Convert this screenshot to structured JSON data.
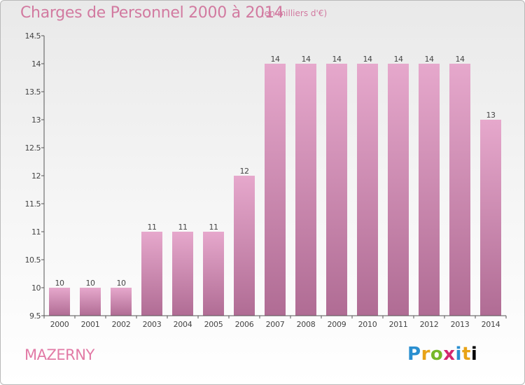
{
  "header": {
    "title": "Charges de Personnel 2000 à 2014",
    "subtitle": "(en milliers d'€)"
  },
  "footer": {
    "commune": "MAZERNY",
    "brand_letters": [
      "P",
      "r",
      "o",
      "x",
      "i",
      "t",
      "i"
    ]
  },
  "colors": {
    "bar_top": "#e6a8cc",
    "bar_bottom": "#b06c94",
    "accent": "#d27aa0"
  },
  "chart_data": {
    "type": "bar",
    "categories": [
      "2000",
      "2001",
      "2002",
      "2003",
      "2004",
      "2005",
      "2006",
      "2007",
      "2008",
      "2009",
      "2010",
      "2011",
      "2012",
      "2013",
      "2014"
    ],
    "values": [
      10,
      10,
      10,
      11,
      11,
      11,
      12,
      14,
      14,
      14,
      14,
      14,
      14,
      14,
      13
    ],
    "data_labels": [
      "10",
      "10",
      "10",
      "11",
      "11",
      "11",
      "12",
      "14",
      "14",
      "14",
      "14",
      "14",
      "14",
      "14",
      "13"
    ],
    "ylim": [
      9.5,
      14.5
    ],
    "yticks": [
      9.5,
      10,
      10.5,
      11,
      11.5,
      12,
      12.5,
      13,
      13.5,
      14,
      14.5
    ],
    "ytick_labels": [
      "9.5",
      "10",
      "10.5",
      "11",
      "11.5",
      "12",
      "12.5",
      "13",
      "13.5",
      "14",
      "14.5"
    ],
    "title": "Charges de Personnel 2000 à 2014",
    "xlabel": "",
    "ylabel": "",
    "grid": false,
    "legend": "none"
  }
}
